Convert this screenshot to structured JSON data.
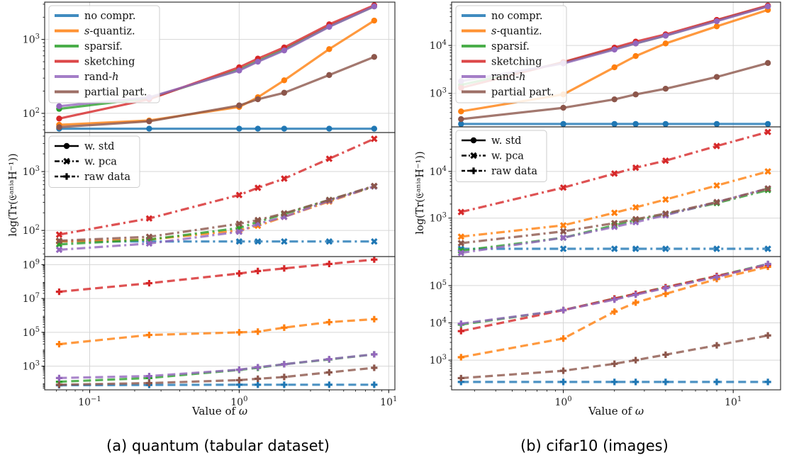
{
  "colors": {
    "no compr.": "#1f77b4",
    "s-quantiz.": "#ff7f0e",
    "sparsif.": "#2ca02c",
    "sketching": "#d62728",
    "rand-h": "#9467bd",
    "partial part.": "#8c564b"
  },
  "figure": {
    "ylabel": "log(Tr(𝔈ᵃⁿⁱᵃH⁻¹))",
    "xlabel": "Value of ω"
  },
  "captions": {
    "left": "(a) quantum (tabular dataset)",
    "right": "(b) cifar10 (images)"
  },
  "chart_data": [
    {
      "type": "line",
      "panel": "quantum / top",
      "x_scale": "log",
      "y_scale": "log",
      "xlim": [
        0.05,
        11
      ],
      "ylim": [
        55,
        3200
      ],
      "y_ticks": [
        {
          "v": 100,
          "label": "10²"
        },
        {
          "v": 1000,
          "label": "10³"
        }
      ],
      "marker": "circle",
      "linestyle": "solid",
      "legend": {
        "position": "top-left",
        "entries": [
          {
            "label": "no compr.",
            "series": "no compr."
          },
          {
            "label": "s-quantiz.",
            "series": "s-quantiz."
          },
          {
            "label": "sparsif.",
            "series": "sparsif."
          },
          {
            "label": "sketching",
            "series": "sketching"
          },
          {
            "label": "rand-h",
            "series": "rand-h"
          },
          {
            "label": "partial part.",
            "series": "partial part."
          }
        ]
      },
      "x": [
        0.0625,
        0.25,
        1,
        1.333,
        2,
        4,
        8
      ],
      "series": [
        {
          "name": "no compr.",
          "values": [
            62,
            62,
            62,
            62,
            62,
            62,
            62
          ]
        },
        {
          "name": "s-quantiz.",
          "values": [
            70,
            80,
            122,
            165,
            280,
            740,
            1800
          ]
        },
        {
          "name": "sparsif.",
          "values": [
            115,
            160,
            390,
            510,
            730,
            1500,
            2800
          ]
        },
        {
          "name": "sketching",
          "values": [
            85,
            155,
            420,
            550,
            780,
            1600,
            2900
          ]
        },
        {
          "name": "rand-h",
          "values": [
            125,
            165,
            380,
            500,
            710,
            1480,
            2800
          ]
        },
        {
          "name": "partial part.",
          "values": [
            65,
            78,
            128,
            155,
            190,
            330,
            580
          ]
        }
      ]
    },
    {
      "type": "line",
      "panel": "quantum / middle",
      "x_scale": "log",
      "y_scale": "log",
      "xlim": [
        0.05,
        11
      ],
      "ylim": [
        36,
        4600
      ],
      "y_ticks": [
        {
          "v": 100,
          "label": "10²"
        },
        {
          "v": 1000,
          "label": "10³"
        }
      ],
      "marker": "x",
      "linestyle": "dashdot",
      "legend": {
        "position": "top-left",
        "entries": [
          {
            "label": "w. std",
            "marker": "circle",
            "linestyle": "solid"
          },
          {
            "label": "w. pca",
            "marker": "x",
            "linestyle": "dashdot"
          },
          {
            "label": "raw data",
            "marker": "plus",
            "linestyle": "dashed"
          }
        ]
      },
      "x": [
        0.0625,
        0.25,
        1,
        1.333,
        2,
        4,
        8
      ],
      "series": [
        {
          "name": "no compr.",
          "values": [
            65,
            65,
            65,
            65,
            65,
            65,
            65
          ]
        },
        {
          "name": "s-quantiz.",
          "values": [
            65,
            70,
            100,
            120,
            170,
            310,
            560
          ]
        },
        {
          "name": "sparsif.",
          "values": [
            58,
            70,
            110,
            140,
            190,
            330,
            560
          ]
        },
        {
          "name": "sketching",
          "values": [
            85,
            160,
            400,
            530,
            760,
            1650,
            3600
          ]
        },
        {
          "name": "rand-h",
          "values": [
            47,
            60,
            95,
            130,
            170,
            320,
            560
          ]
        },
        {
          "name": "partial part.",
          "values": [
            67,
            78,
            130,
            150,
            195,
            330,
            570
          ]
        }
      ]
    },
    {
      "type": "line",
      "panel": "quantum / bottom",
      "x_scale": "log",
      "y_scale": "log",
      "xlim": [
        0.05,
        11
      ],
      "ylim": [
        40,
        3000000000
      ],
      "x_ticks": [
        {
          "v": 0.1,
          "label": "10⁻¹"
        },
        {
          "v": 1,
          "label": "10⁰"
        },
        {
          "v": 10,
          "label": "10¹"
        }
      ],
      "y_ticks": [
        {
          "v": 1000,
          "label": "10³"
        },
        {
          "v": 100000,
          "label": "10⁵"
        },
        {
          "v": 10000000,
          "label": "10⁷"
        },
        {
          "v": 1000000000,
          "label": "10⁹"
        }
      ],
      "marker": "plus",
      "linestyle": "dashed",
      "x": [
        0.0625,
        0.25,
        1,
        1.333,
        2,
        4,
        8
      ],
      "series": [
        {
          "name": "no compr.",
          "values": [
            75,
            78,
            80,
            80,
            80,
            80,
            80
          ]
        },
        {
          "name": "s-quantiz.",
          "values": [
            20000,
            70000,
            100000,
            110000,
            190000,
            400000,
            600000
          ]
        },
        {
          "name": "sparsif.",
          "values": [
            120,
            200,
            600,
            800,
            1300,
            2500,
            5000
          ]
        },
        {
          "name": "sketching",
          "values": [
            25000000,
            80000000,
            300000000,
            420000000,
            600000000,
            1100000000,
            2000000000
          ]
        },
        {
          "name": "rand-h",
          "values": [
            200,
            260,
            620,
            870,
            1300,
            2600,
            5000
          ]
        },
        {
          "name": "partial part.",
          "values": [
            80,
            100,
            150,
            180,
            230,
            430,
            800
          ]
        }
      ]
    },
    {
      "type": "line",
      "panel": "cifar10 / top",
      "x_scale": "log",
      "y_scale": "log",
      "xlim": [
        0.22,
        19
      ],
      "ylim": [
        200,
        80000
      ],
      "y_ticks": [
        {
          "v": 1000,
          "label": "10³"
        },
        {
          "v": 10000,
          "label": "10⁴"
        }
      ],
      "marker": "circle",
      "linestyle": "solid",
      "legend": {
        "position": "top-left",
        "entries": [
          {
            "label": "no compr.",
            "series": "no compr."
          },
          {
            "label": "s-quantiz.",
            "series": "s-quantiz."
          },
          {
            "label": "sparsif.",
            "series": "sparsif."
          },
          {
            "label": "sketching",
            "series": "sketching"
          },
          {
            "label": "rand-h",
            "series": "rand-h"
          },
          {
            "label": "partial part.",
            "series": "partial part."
          }
        ]
      },
      "x": [
        0.25,
        1,
        2,
        2.667,
        4,
        8,
        16
      ],
      "series": [
        {
          "name": "no compr.",
          "values": [
            230,
            230,
            230,
            230,
            230,
            230,
            230
          ]
        },
        {
          "name": "s-quantiz.",
          "values": [
            420,
            950,
            3500,
            6000,
            11000,
            25000,
            55000
          ]
        },
        {
          "name": "sparsif.",
          "values": [
            1500,
            4400,
            8500,
            11000,
            16000,
            33000,
            66000
          ]
        },
        {
          "name": "sketching",
          "values": [
            1300,
            4500,
            9000,
            12000,
            17000,
            34000,
            68000
          ]
        },
        {
          "name": "rand-h",
          "values": [
            1800,
            4200,
            8200,
            11000,
            16000,
            32000,
            65000
          ]
        },
        {
          "name": "partial part.",
          "values": [
            290,
            500,
            750,
            950,
            1250,
            2200,
            4300
          ]
        }
      ]
    },
    {
      "type": "line",
      "panel": "cifar10 / middle",
      "x_scale": "log",
      "y_scale": "log",
      "xlim": [
        0.22,
        19
      ],
      "ylim": [
        150,
        90000
      ],
      "y_ticks": [
        {
          "v": 1000,
          "label": "10³"
        },
        {
          "v": 10000,
          "label": "10⁴"
        }
      ],
      "marker": "x",
      "linestyle": "dashdot",
      "legend": {
        "position": "top-left",
        "entries": [
          {
            "label": "w. std",
            "marker": "circle",
            "linestyle": "solid"
          },
          {
            "label": "w. pca",
            "marker": "x",
            "linestyle": "dashdot"
          },
          {
            "label": "raw data",
            "marker": "plus",
            "linestyle": "dashed"
          }
        ]
      },
      "x": [
        0.25,
        1,
        2,
        2.667,
        4,
        8,
        16
      ],
      "series": [
        {
          "name": "no compr.",
          "values": [
            220,
            220,
            220,
            220,
            220,
            220,
            220
          ]
        },
        {
          "name": "s-quantiz.",
          "values": [
            400,
            700,
            1300,
            1700,
            2500,
            5000,
            10000
          ]
        },
        {
          "name": "sparsif.",
          "values": [
            200,
            380,
            700,
            900,
            1200,
            2100,
            4000
          ]
        },
        {
          "name": "sketching",
          "values": [
            1350,
            4500,
            9000,
            12000,
            17000,
            35000,
            70000
          ]
        },
        {
          "name": "rand-h",
          "values": [
            180,
            380,
            650,
            820,
            1150,
            2200,
            4300
          ]
        },
        {
          "name": "partial part.",
          "values": [
            290,
            520,
            780,
            950,
            1250,
            2200,
            4300
          ]
        }
      ]
    },
    {
      "type": "line",
      "panel": "cifar10 / bottom",
      "x_scale": "log",
      "y_scale": "log",
      "xlim": [
        0.22,
        19
      ],
      "ylim": [
        160,
        600000
      ],
      "x_ticks": [
        {
          "v": 1,
          "label": "10⁰"
        },
        {
          "v": 10,
          "label": "10¹"
        }
      ],
      "y_ticks": [
        {
          "v": 1000,
          "label": "10³"
        },
        {
          "v": 10000,
          "label": "10⁴"
        },
        {
          "v": 100000,
          "label": "10⁵"
        }
      ],
      "marker": "plus",
      "linestyle": "dashed",
      "x": [
        0.25,
        1,
        2,
        2.667,
        4,
        8,
        16
      ],
      "series": [
        {
          "name": "no compr.",
          "values": [
            260,
            260,
            260,
            260,
            260,
            260,
            260
          ]
        },
        {
          "name": "s-quantiz.",
          "values": [
            1200,
            3800,
            20000,
            35000,
            60000,
            150000,
            320000
          ]
        },
        {
          "name": "sparsif.",
          "values": [
            9000,
            22000,
            45000,
            60000,
            90000,
            180000,
            380000
          ]
        },
        {
          "name": "sketching",
          "values": [
            6000,
            22000,
            45000,
            60000,
            90000,
            180000,
            360000
          ]
        },
        {
          "name": "rand-h",
          "values": [
            9500,
            22000,
            42000,
            57000,
            85000,
            170000,
            380000
          ]
        },
        {
          "name": "partial part.",
          "values": [
            330,
            520,
            800,
            1000,
            1400,
            2500,
            4600
          ]
        }
      ]
    }
  ]
}
